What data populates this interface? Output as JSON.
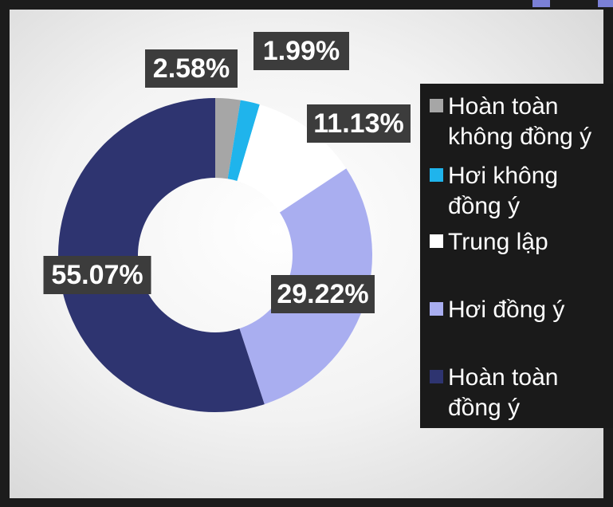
{
  "chart_data": {
    "type": "donut",
    "series": [
      {
        "name": "Hoàn toàn không đồng ý",
        "color": "#a6a6a6",
        "values": [
          2.58
        ],
        "value_labels": [
          "2.58%"
        ]
      },
      {
        "name": "Hơi không đồng ý",
        "color": "#1fb4ec",
        "values": [
          1.99
        ],
        "value_labels": [
          "1.99%"
        ]
      },
      {
        "name": "Trung lập",
        "color": "#ffffff",
        "values": [
          11.13
        ],
        "value_labels": [
          "11.13%"
        ]
      },
      {
        "name": "Hơi đồng ý",
        "color": "#a9aef0",
        "values": [
          29.22
        ],
        "value_labels": [
          "29.22%"
        ]
      },
      {
        "name": "Hoàn toàn đồng ý",
        "color": "#2e3470",
        "values": [
          55.07
        ],
        "value_labels": [
          "55.07%"
        ]
      }
    ],
    "legend": "right"
  }
}
